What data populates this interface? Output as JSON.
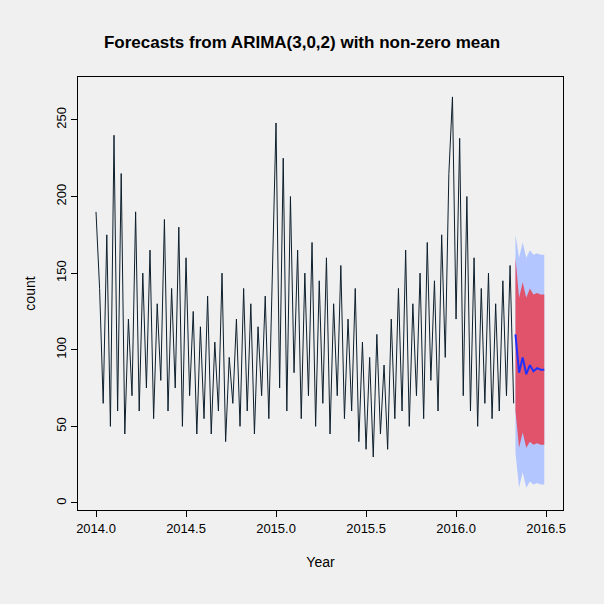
{
  "chart_data": {
    "type": "line",
    "title": "Forecasts from ARIMA(3,0,2) with non-zero mean",
    "x_label": "Year",
    "y_label": "count",
    "grid": false,
    "color": "#0d1f2d",
    "xlim": [
      2013.9,
      2016.594
    ],
    "ylim": [
      -4.6,
      278
    ],
    "xticks": [
      {
        "value": 2014,
        "label": "2014.0"
      },
      {
        "value": 2014.5,
        "label": "2014.5"
      },
      {
        "value": 2015,
        "label": "2015.0"
      },
      {
        "value": 2015.5,
        "label": "2015.5"
      },
      {
        "value": 2016,
        "label": "2016.0"
      },
      {
        "value": 2016.5,
        "label": "2016.5"
      }
    ],
    "yticks": [
      0,
      50,
      100,
      150,
      200,
      250
    ],
    "x": [
      2014.0,
      2014.02,
      2014.04,
      2014.06,
      2014.08,
      2014.1,
      2014.12,
      2014.14,
      2014.16,
      2014.18,
      2014.2,
      2014.22,
      2014.24,
      2014.26,
      2014.28,
      2014.3,
      2014.32,
      2014.34,
      2014.36,
      2014.38,
      2014.4,
      2014.42,
      2014.44,
      2014.46,
      2014.48,
      2014.5,
      2014.52,
      2014.54,
      2014.56,
      2014.58,
      2014.6,
      2014.62,
      2014.64,
      2014.66,
      2014.68,
      2014.7,
      2014.72,
      2014.74,
      2014.76,
      2014.78,
      2014.8,
      2014.82,
      2014.84,
      2014.86,
      2014.88,
      2014.9,
      2014.92,
      2014.94,
      2014.96,
      2014.98,
      2015.0,
      2015.02,
      2015.04,
      2015.06,
      2015.08,
      2015.1,
      2015.12,
      2015.14,
      2015.16,
      2015.18,
      2015.2,
      2015.22,
      2015.24,
      2015.26,
      2015.28,
      2015.3,
      2015.32,
      2015.34,
      2015.36,
      2015.38,
      2015.4,
      2015.42,
      2015.44,
      2015.46,
      2015.48,
      2015.5,
      2015.52,
      2015.54,
      2015.56,
      2015.58,
      2015.6,
      2015.62,
      2015.64,
      2015.66,
      2015.68,
      2015.7,
      2015.72,
      2015.74,
      2015.76,
      2015.78,
      2015.8,
      2015.82,
      2015.84,
      2015.86,
      2015.88,
      2015.9,
      2015.92,
      2015.94,
      2015.96,
      2015.98,
      2016.0,
      2016.02,
      2016.04,
      2016.06,
      2016.08,
      2016.1,
      2016.12,
      2016.14,
      2016.16,
      2016.18,
      2016.2,
      2016.22,
      2016.24,
      2016.26,
      2016.28,
      2016.3,
      2016.32
    ],
    "values": [
      190,
      140,
      65,
      175,
      50,
      240,
      60,
      215,
      45,
      120,
      70,
      190,
      60,
      150,
      75,
      165,
      55,
      130,
      80,
      185,
      60,
      140,
      75,
      180,
      50,
      160,
      70,
      125,
      45,
      115,
      55,
      135,
      45,
      105,
      60,
      150,
      40,
      95,
      65,
      120,
      50,
      140,
      60,
      130,
      45,
      115,
      70,
      135,
      55,
      160,
      248,
      75,
      225,
      60,
      200,
      85,
      165,
      55,
      150,
      70,
      170,
      50,
      145,
      65,
      160,
      45,
      130,
      70,
      155,
      55,
      120,
      60,
      140,
      40,
      105,
      35,
      95,
      30,
      110,
      45,
      90,
      35,
      120,
      55,
      140,
      60,
      165,
      50,
      130,
      70,
      150,
      55,
      170,
      80,
      145,
      60,
      175,
      95,
      215,
      265,
      120,
      238,
      70,
      200,
      60,
      160,
      50,
      140,
      65,
      150,
      55,
      130,
      60,
      145,
      70,
      155,
      65
    ],
    "forecast": {
      "x": [
        2016.33,
        2016.35,
        2016.37,
        2016.39,
        2016.41,
        2016.43,
        2016.45,
        2016.47,
        2016.49
      ],
      "values": [
        110,
        85,
        95,
        84,
        90,
        86,
        88,
        87,
        87
      ],
      "color": "#2030ff",
      "lo80": [
        60,
        36,
        46,
        36,
        40,
        38,
        39,
        38,
        38
      ],
      "hi80": [
        160,
        134,
        144,
        134,
        140,
        136,
        137,
        136,
        136
      ],
      "lo95": [
        33,
        10,
        20,
        10,
        14,
        12,
        13,
        12,
        12
      ],
      "hi95": [
        175,
        160,
        170,
        160,
        165,
        162,
        163,
        162,
        162
      ],
      "colors": [
        "#e0536b",
        "#b3c6ff"
      ]
    }
  }
}
